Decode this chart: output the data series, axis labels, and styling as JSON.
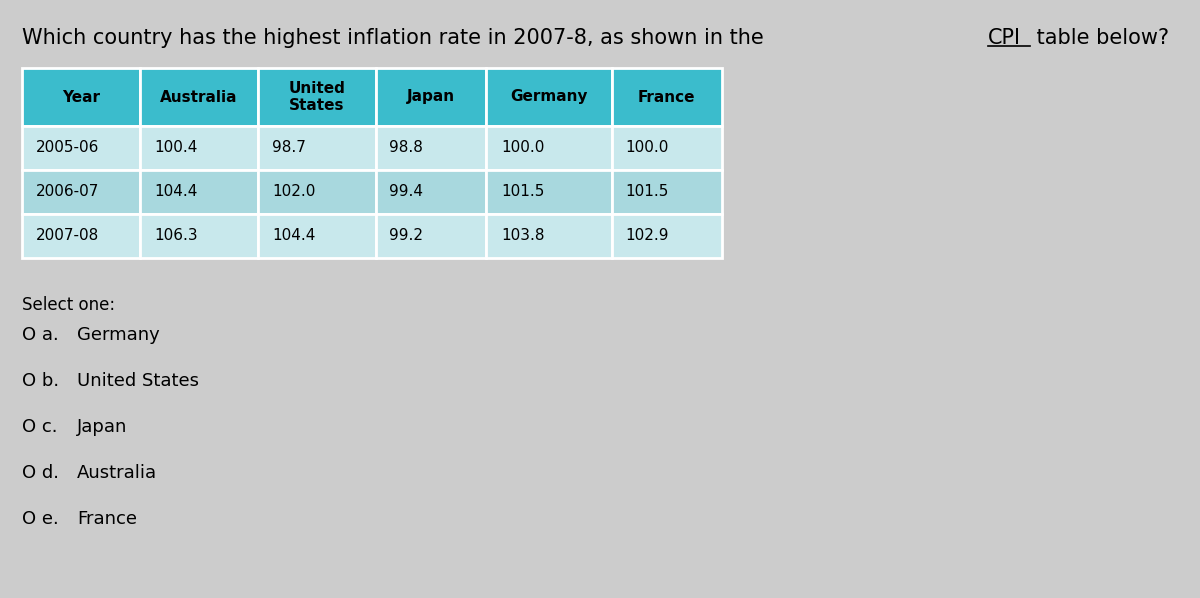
{
  "question_prefix": "Which country has the highest inflation rate in 2007-8, as shown in the ",
  "question_cpi": "CPI",
  "question_suffix": " table below?",
  "bg_color": "#cccccc",
  "table_header_color": "#3bbccc",
  "table_row_color1": "#c8e8ec",
  "table_row_color2": "#a8d8de",
  "columns": [
    "Year",
    "Australia",
    "United\nStates",
    "Japan",
    "Germany",
    "France"
  ],
  "rows": [
    [
      "2005-06",
      "100.4",
      "98.7",
      "98.8",
      "100.0",
      "100.0"
    ],
    [
      "2006-07",
      "104.4",
      "102.0",
      "99.4",
      "101.5",
      "101.5"
    ],
    [
      "2007-08",
      "106.3",
      "104.4",
      "99.2",
      "103.8",
      "102.9"
    ]
  ],
  "select_one_text": "Select one:",
  "options": [
    [
      "O a.",
      "Germany"
    ],
    [
      "O b.",
      "United States"
    ],
    [
      "O c.",
      "Japan"
    ],
    [
      "O d.",
      "Australia"
    ],
    [
      "O e.",
      "France"
    ]
  ],
  "font_size_question": 15,
  "font_size_table_header": 11,
  "font_size_table_data": 11,
  "font_size_options": 13,
  "font_size_select": 12
}
